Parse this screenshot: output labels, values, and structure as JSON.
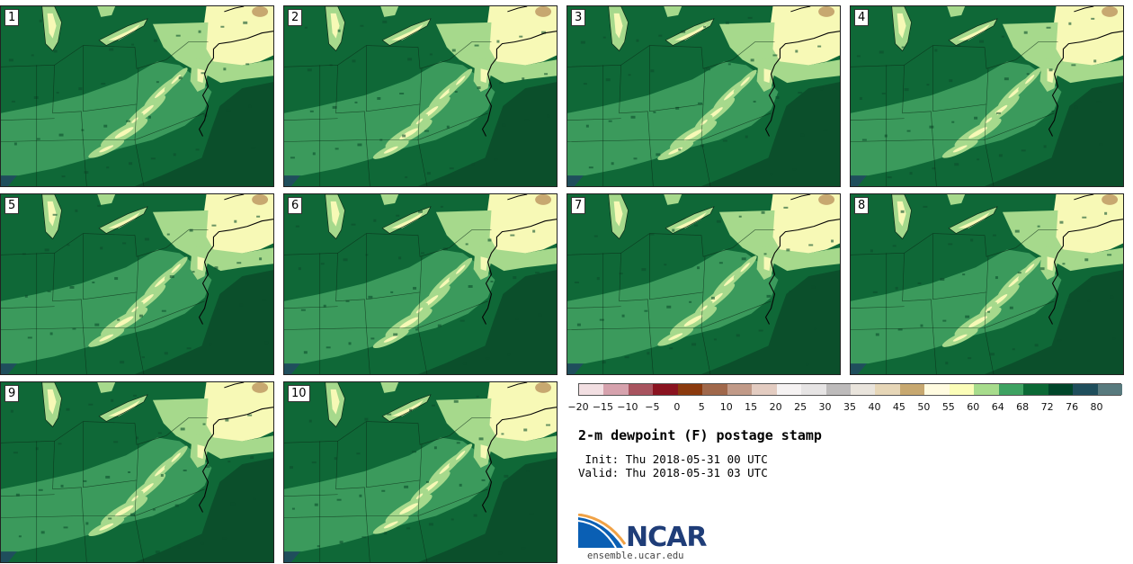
{
  "panels": [
    {
      "label": "1"
    },
    {
      "label": "2"
    },
    {
      "label": "3"
    },
    {
      "label": "4"
    },
    {
      "label": "5"
    },
    {
      "label": "6"
    },
    {
      "label": "7"
    },
    {
      "label": "8"
    },
    {
      "label": "9"
    },
    {
      "label": "10"
    }
  ],
  "colorbar": {
    "colors": [
      "#f2dfe2",
      "#d6a2ad",
      "#a8545f",
      "#8a1320",
      "#8b3a0e",
      "#a0684b",
      "#c19a88",
      "#e3ccc1",
      "#f5f2f2",
      "#e6e4e4",
      "#bdbbbb",
      "#e9e4dc",
      "#e6d6b7",
      "#c7a870",
      "#fffbe0",
      "#fbfdb8",
      "#a7dc8c",
      "#3ea262",
      "#0b6935",
      "#00462a",
      "#1f4e5c",
      "#587a7e"
    ],
    "ticks": [
      "−20",
      "−15",
      "−10",
      "−5",
      "0",
      "5",
      "10",
      "15",
      "20",
      "25",
      "30",
      "35",
      "40",
      "45",
      "50",
      "55",
      "60",
      "64",
      "68",
      "72",
      "76",
      "80"
    ]
  },
  "map_palette": {
    "water": "#0b4f2b",
    "dark": "#0f6837",
    "mid": "#3b9a5c",
    "light": "#a6d98c",
    "pale": "#f7f9b6",
    "sand": "#c7a870",
    "teal": "#1f4e5c"
  },
  "title": "2-m dewpoint (F) postage stamp",
  "init_line": " Init: Thu 2018-05-31 00 UTC",
  "valid_line": "Valid: Thu 2018-05-31 03 UTC",
  "logo": {
    "text": "NCAR",
    "blue": "#0a5fb4",
    "orange": "#f0a246",
    "navy": "#1f3d78"
  },
  "url": "ensemble.ucar.edu"
}
